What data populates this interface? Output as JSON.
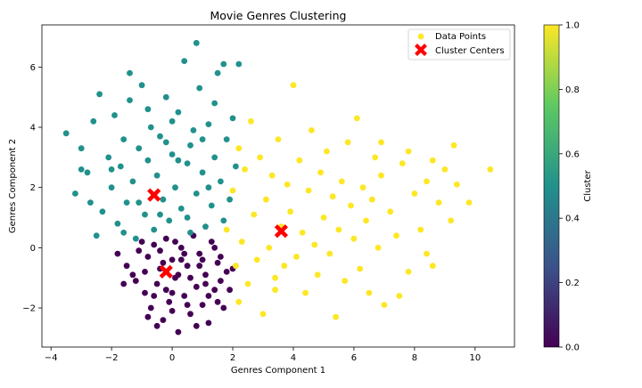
{
  "chart_data": {
    "type": "scatter",
    "title": "Movie Genres Clustering",
    "xlabel": "Genres Component 1",
    "ylabel": "Genres Component 2",
    "xlim": [
      -4.3,
      11.3
    ],
    "ylim": [
      -3.3,
      7.4
    ],
    "x_ticks": [
      -4,
      -2,
      0,
      2,
      4,
      6,
      8,
      10
    ],
    "y_ticks": [
      -2,
      0,
      2,
      4,
      6
    ],
    "grid": false,
    "legend": {
      "placement": "top-right",
      "entries": [
        {
          "label": "Data Points",
          "marker": "circle",
          "color": "#fde725"
        },
        {
          "label": "Cluster Centers",
          "marker": "x",
          "color": "#ff0000"
        }
      ]
    },
    "colorbar": {
      "label": "Cluster",
      "range": [
        0.0,
        1.0
      ],
      "ticks": [
        "0.0",
        "0.2",
        "0.4",
        "0.6",
        "0.8",
        "1.0"
      ],
      "colormap": [
        "#440154",
        "#3b528b",
        "#21918c",
        "#5ec962",
        "#fde725"
      ]
    },
    "clusters": [
      {
        "id": 0,
        "color": "#440154",
        "center": [
          -0.2,
          -0.8
        ],
        "points": [
          [
            -1.8,
            -0.2
          ],
          [
            -1.5,
            -0.6
          ],
          [
            -1.2,
            -1.1
          ],
          [
            -1.0,
            0.2
          ],
          [
            -0.9,
            -1.5
          ],
          [
            -0.8,
            -0.3
          ],
          [
            -0.7,
            -2.0
          ],
          [
            -0.6,
            0.1
          ],
          [
            -0.5,
            -1.2
          ],
          [
            -0.4,
            -0.7
          ],
          [
            -0.3,
            -2.4
          ],
          [
            -0.2,
            0.3
          ],
          [
            -0.1,
            -1.8
          ],
          [
            0.0,
            -0.4
          ],
          [
            0.1,
            -1.0
          ],
          [
            0.2,
            -2.8
          ],
          [
            0.3,
            0.0
          ],
          [
            0.4,
            -1.6
          ],
          [
            0.5,
            -0.6
          ],
          [
            0.6,
            -2.2
          ],
          [
            0.7,
            0.4
          ],
          [
            0.8,
            -1.3
          ],
          [
            0.9,
            -0.2
          ],
          [
            1.0,
            -1.9
          ],
          [
            1.1,
            -0.9
          ],
          [
            1.2,
            -2.5
          ],
          [
            1.3,
            0.2
          ],
          [
            1.4,
            -1.4
          ],
          [
            1.5,
            -0.5
          ],
          [
            1.6,
            -1.1
          ],
          [
            1.7,
            -2.0
          ],
          [
            1.8,
            -0.8
          ],
          [
            -1.3,
            -0.9
          ],
          [
            -1.1,
            -0.1
          ],
          [
            -0.9,
            -0.8
          ],
          [
            -0.6,
            -1.6
          ],
          [
            -0.4,
            -0.1
          ],
          [
            -0.2,
            -1.4
          ],
          [
            0.0,
            -2.1
          ],
          [
            0.2,
            -0.9
          ],
          [
            0.4,
            -0.2
          ],
          [
            0.6,
            -1.0
          ],
          [
            0.8,
            -2.6
          ],
          [
            1.0,
            -0.4
          ],
          [
            1.2,
            -1.6
          ],
          [
            1.4,
            0.0
          ],
          [
            1.6,
            -0.3
          ],
          [
            1.9,
            -1.4
          ],
          [
            2.0,
            -0.7
          ],
          [
            -1.6,
            -1.2
          ],
          [
            -0.8,
            -2.3
          ],
          [
            0.0,
            -1.5
          ],
          [
            0.5,
            -1.9
          ],
          [
            1.1,
            -1.2
          ],
          [
            -0.3,
            -0.5
          ],
          [
            0.3,
            -0.4
          ],
          [
            0.9,
            -0.6
          ],
          [
            1.5,
            -1.8
          ],
          [
            0.1,
            0.2
          ],
          [
            -0.5,
            -2.6
          ]
        ]
      },
      {
        "id": 0.5,
        "color": "#21918c",
        "center": [
          -0.6,
          1.75
        ],
        "points": [
          [
            -3.5,
            3.8
          ],
          [
            -3.2,
            1.8
          ],
          [
            -3.0,
            3.3
          ],
          [
            -2.8,
            2.5
          ],
          [
            -2.6,
            4.2
          ],
          [
            -2.5,
            0.4
          ],
          [
            -2.4,
            5.1
          ],
          [
            -2.3,
            1.2
          ],
          [
            -2.1,
            3.0
          ],
          [
            -2.0,
            2.0
          ],
          [
            -1.9,
            4.4
          ],
          [
            -1.8,
            0.8
          ],
          [
            -1.7,
            2.7
          ],
          [
            -1.6,
            3.6
          ],
          [
            -1.5,
            1.5
          ],
          [
            -1.4,
            4.9
          ],
          [
            -1.3,
            2.2
          ],
          [
            -1.2,
            0.3
          ],
          [
            -1.1,
            3.3
          ],
          [
            -1.0,
            5.4
          ],
          [
            -0.9,
            1.1
          ],
          [
            -0.8,
            2.9
          ],
          [
            -0.7,
            4.0
          ],
          [
            -0.6,
            0.6
          ],
          [
            -0.5,
            2.4
          ],
          [
            -0.4,
            3.7
          ],
          [
            -0.3,
            1.6
          ],
          [
            -0.2,
            5.0
          ],
          [
            -0.1,
            0.9
          ],
          [
            0.0,
            3.1
          ],
          [
            0.1,
            2.0
          ],
          [
            0.2,
            4.5
          ],
          [
            0.3,
            1.3
          ],
          [
            0.4,
            6.2
          ],
          [
            0.5,
            2.8
          ],
          [
            0.6,
            0.5
          ],
          [
            0.7,
            3.9
          ],
          [
            0.8,
            1.8
          ],
          [
            0.9,
            5.3
          ],
          [
            1.0,
            2.5
          ],
          [
            1.1,
            0.7
          ],
          [
            1.2,
            4.1
          ],
          [
            1.3,
            1.4
          ],
          [
            1.4,
            3.0
          ],
          [
            1.5,
            5.8
          ],
          [
            1.6,
            2.2
          ],
          [
            1.7,
            0.9
          ],
          [
            1.8,
            3.6
          ],
          [
            1.9,
            1.6
          ],
          [
            2.0,
            4.3
          ],
          [
            2.1,
            2.7
          ],
          [
            0.8,
            6.8
          ],
          [
            -1.4,
            5.8
          ],
          [
            -0.4,
            1.1
          ],
          [
            0.2,
            2.9
          ],
          [
            0.6,
            3.4
          ],
          [
            -0.8,
            4.6
          ],
          [
            1.4,
            4.8
          ],
          [
            -2.0,
            2.6
          ],
          [
            -1.1,
            1.5
          ],
          [
            0.0,
            4.2
          ],
          [
            1.0,
            3.6
          ],
          [
            -3.0,
            2.6
          ],
          [
            -2.7,
            1.5
          ],
          [
            1.7,
            6.1
          ],
          [
            1.2,
            2.0
          ],
          [
            -0.2,
            3.5
          ],
          [
            0.5,
            1.0
          ],
          [
            -1.6,
            0.5
          ],
          [
            2.2,
            6.1
          ]
        ]
      },
      {
        "id": 1.0,
        "color": "#fde725",
        "center": [
          3.6,
          0.55
        ],
        "points": [
          [
            1.8,
            0.6
          ],
          [
            2.0,
            1.9
          ],
          [
            2.1,
            -0.6
          ],
          [
            2.2,
            3.3
          ],
          [
            2.3,
            0.2
          ],
          [
            2.4,
            2.6
          ],
          [
            2.5,
            -1.2
          ],
          [
            2.6,
            4.2
          ],
          [
            2.7,
            1.1
          ],
          [
            2.8,
            -0.4
          ],
          [
            2.9,
            3.0
          ],
          [
            3.0,
            -2.2
          ],
          [
            3.1,
            1.6
          ],
          [
            3.2,
            0.0
          ],
          [
            3.3,
            2.4
          ],
          [
            3.4,
            -1.0
          ],
          [
            3.5,
            3.6
          ],
          [
            3.6,
            0.7
          ],
          [
            3.7,
            -0.6
          ],
          [
            3.8,
            2.1
          ],
          [
            3.9,
            1.2
          ],
          [
            4.0,
            5.4
          ],
          [
            4.1,
            -0.3
          ],
          [
            4.2,
            2.9
          ],
          [
            4.3,
            0.5
          ],
          [
            4.4,
            -1.5
          ],
          [
            4.5,
            1.9
          ],
          [
            4.6,
            3.9
          ],
          [
            4.7,
            0.1
          ],
          [
            4.8,
            -0.9
          ],
          [
            4.9,
            2.5
          ],
          [
            5.0,
            1.0
          ],
          [
            5.1,
            3.2
          ],
          [
            5.2,
            -0.2
          ],
          [
            5.3,
            1.7
          ],
          [
            5.4,
            -2.3
          ],
          [
            5.5,
            0.6
          ],
          [
            5.6,
            2.2
          ],
          [
            5.7,
            -1.1
          ],
          [
            5.8,
            3.5
          ],
          [
            5.9,
            1.4
          ],
          [
            6.0,
            0.3
          ],
          [
            6.1,
            4.3
          ],
          [
            6.2,
            -0.7
          ],
          [
            6.3,
            2.0
          ],
          [
            6.4,
            0.9
          ],
          [
            6.5,
            -1.5
          ],
          [
            6.6,
            1.6
          ],
          [
            6.7,
            3.0
          ],
          [
            6.8,
            0.0
          ],
          [
            6.9,
            2.4
          ],
          [
            7.0,
            -1.9
          ],
          [
            7.2,
            1.2
          ],
          [
            7.4,
            0.4
          ],
          [
            7.6,
            2.8
          ],
          [
            7.8,
            -0.8
          ],
          [
            8.0,
            1.8
          ],
          [
            8.2,
            0.6
          ],
          [
            8.4,
            2.2
          ],
          [
            8.6,
            -0.6
          ],
          [
            8.8,
            1.5
          ],
          [
            9.0,
            2.6
          ],
          [
            9.2,
            0.9
          ],
          [
            9.4,
            2.1
          ],
          [
            9.8,
            1.5
          ],
          [
            10.5,
            2.6
          ],
          [
            8.6,
            2.9
          ],
          [
            7.8,
            3.2
          ],
          [
            6.9,
            3.5
          ],
          [
            8.4,
            -0.2
          ],
          [
            9.3,
            3.4
          ],
          [
            7.5,
            -1.6
          ],
          [
            3.4,
            -1.4
          ],
          [
            2.2,
            -1.8
          ]
        ]
      }
    ]
  }
}
